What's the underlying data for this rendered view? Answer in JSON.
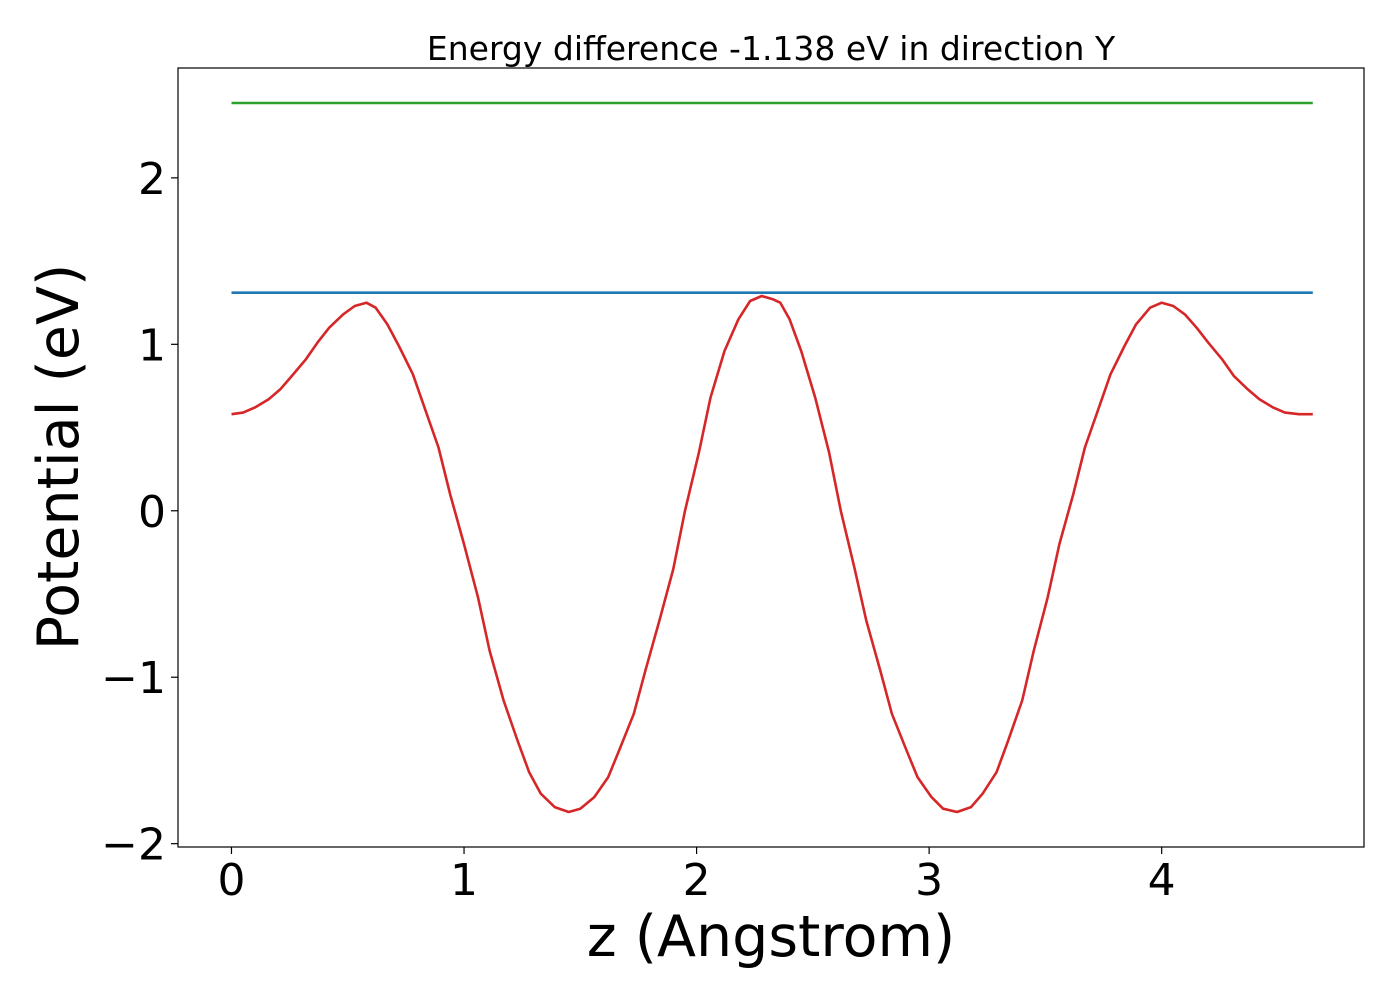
{
  "chart_data": {
    "type": "line",
    "title": "Energy difference -1.138 eV in direction Y",
    "xlabel": "z (Angstrom)",
    "ylabel": "Potential (eV)",
    "xlim": [
      -0.23,
      4.87
    ],
    "ylim": [
      -2.02,
      2.66
    ],
    "xticks": [
      0,
      1,
      2,
      3,
      4
    ],
    "xtick_labels": [
      "0",
      "1",
      "2",
      "3",
      "4"
    ],
    "yticks": [
      -2,
      -1,
      0,
      1,
      2
    ],
    "ytick_labels": [
      "−2",
      "−1",
      "0",
      "1",
      "2"
    ],
    "grid": false,
    "legend": "none",
    "series": [
      {
        "color": "#2ca02c",
        "x": [
          0,
          4.65
        ],
        "y": [
          2.45,
          2.45
        ]
      },
      {
        "color": "#1f77b4",
        "x": [
          0,
          4.65
        ],
        "y": [
          1.31,
          1.31
        ]
      },
      {
        "color": "#d62728",
        "x": [
          0,
          0.05,
          0.1,
          0.16,
          0.21,
          0.26,
          0.32,
          0.37,
          0.42,
          0.48,
          0.53,
          0.58,
          0.62,
          0.67,
          0.72,
          0.78,
          0.83,
          0.89,
          0.94,
          1.0,
          1.06,
          1.11,
          1.17,
          1.23,
          1.28,
          1.33,
          1.39,
          1.45,
          1.5,
          1.56,
          1.62,
          1.67,
          1.73,
          1.78,
          1.84,
          1.9,
          1.95,
          2.01,
          2.06,
          2.12,
          2.18,
          2.23,
          2.28,
          2.33,
          2.36,
          2.4,
          2.45,
          2.51,
          2.57,
          2.62,
          2.68,
          2.73,
          2.79,
          2.84,
          2.9,
          2.95,
          3.01,
          3.06,
          3.12,
          3.18,
          3.23,
          3.29,
          3.34,
          3.4,
          3.45,
          3.51,
          3.56,
          3.62,
          3.67,
          3.73,
          3.78,
          3.84,
          3.89,
          3.95,
          4.0,
          4.05,
          4.1,
          4.15,
          4.2,
          4.26,
          4.31,
          4.37,
          4.42,
          4.48,
          4.53,
          4.59,
          4.65
        ],
        "y": [
          0.58,
          0.59,
          0.62,
          0.67,
          0.73,
          0.81,
          0.91,
          1.01,
          1.1,
          1.18,
          1.23,
          1.25,
          1.22,
          1.12,
          0.99,
          0.82,
          0.62,
          0.38,
          0.1,
          -0.2,
          -0.52,
          -0.84,
          -1.14,
          -1.38,
          -1.57,
          -1.7,
          -1.78,
          -1.81,
          -1.79,
          -1.72,
          -1.6,
          -1.43,
          -1.22,
          -0.96,
          -0.66,
          -0.35,
          0.0,
          0.35,
          0.68,
          0.96,
          1.15,
          1.26,
          1.29,
          1.27,
          1.25,
          1.15,
          0.96,
          0.68,
          0.35,
          0.0,
          -0.35,
          -0.66,
          -0.96,
          -1.22,
          -1.43,
          -1.6,
          -1.72,
          -1.79,
          -1.81,
          -1.78,
          -1.7,
          -1.57,
          -1.38,
          -1.14,
          -0.84,
          -0.52,
          -0.2,
          0.1,
          0.38,
          0.62,
          0.82,
          0.99,
          1.12,
          1.22,
          1.25,
          1.23,
          1.18,
          1.1,
          1.01,
          0.91,
          0.81,
          0.73,
          0.67,
          0.62,
          0.59,
          0.58,
          0.58
        ]
      }
    ]
  }
}
